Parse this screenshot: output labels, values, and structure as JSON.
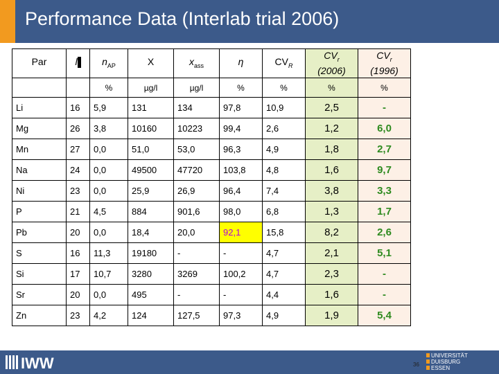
{
  "title": "Performance Data (Interlab trial 2006)",
  "table": {
    "headers": {
      "par": "Par",
      "l": "l",
      "nap_main": "n",
      "nap_sub": "AP",
      "x": "X",
      "xass_main": "x",
      "xass_sub": "ass",
      "eta": "η",
      "cvr_main": "CV",
      "cvr_sub": "R",
      "cvr2006_main": "CV",
      "cvr2006_sub": "r",
      "cvr2006_year": "(2006)",
      "cvr1996_main": "CV",
      "cvr1996_sub": "r",
      "cvr1996_year": "(1996)"
    },
    "units": [
      "",
      "",
      "%",
      "µg/l",
      "µg/l",
      "%",
      "%",
      "%",
      "%"
    ],
    "rows": [
      [
        "Li",
        "16",
        "5,9",
        "131",
        "134",
        "97,8",
        "10,9",
        "2,5",
        "-"
      ],
      [
        "Mg",
        "26",
        "3,8",
        "10160",
        "10223",
        "99,4",
        "2,6",
        "1,2",
        "6,0"
      ],
      [
        "Mn",
        "27",
        "0,0",
        "51,0",
        "53,0",
        "96,3",
        "4,9",
        "1,8",
        "2,7"
      ],
      [
        "Na",
        "24",
        "0,0",
        "49500",
        "47720",
        "103,8",
        "4,8",
        "1,6",
        "9,7"
      ],
      [
        "Ni",
        "23",
        "0,0",
        "25,9",
        "26,9",
        "96,4",
        "7,4",
        "3,8",
        "3,3"
      ],
      [
        "P",
        "21",
        "4,5",
        "884",
        "901,6",
        "98,0",
        "6,8",
        "1,3",
        "1,7"
      ],
      [
        "Pb",
        "20",
        "0,0",
        "18,4",
        "20,0",
        "92,1",
        "15,8",
        "8,2",
        "2,6"
      ],
      [
        "S",
        "16",
        "11,3",
        "19180",
        "-",
        "-",
        "4,7",
        "2,1",
        "5,1"
      ],
      [
        "Si",
        "17",
        "10,7",
        "3280",
        "3269",
        "100,2",
        "4,7",
        "2,3",
        "-"
      ],
      [
        "Sr",
        "20",
        "0,0",
        "495",
        "-",
        "-",
        "4,4",
        "1,6",
        "-"
      ],
      [
        "Zn",
        "23",
        "4,2",
        "124",
        "127,5",
        "97,3",
        "4,9",
        "1,9",
        "5,4"
      ]
    ]
  },
  "footer": {
    "logo": "IWW",
    "page_number": "36",
    "university_line1": "UNIVERSITÄT",
    "university_line2": "DUISBURG",
    "university_line3": "ESSEN"
  },
  "colors": {
    "header_bg": "#3c5a8a",
    "accent_orange": "#f29a1f",
    "cv_2006_bg": "#e6efc6",
    "cv_1996_bg": "#fdf0e6",
    "cv_1996_text": "#2e8a1f",
    "highlight_yellow": "#ffff00",
    "highlight_purple": "#b000e0"
  }
}
